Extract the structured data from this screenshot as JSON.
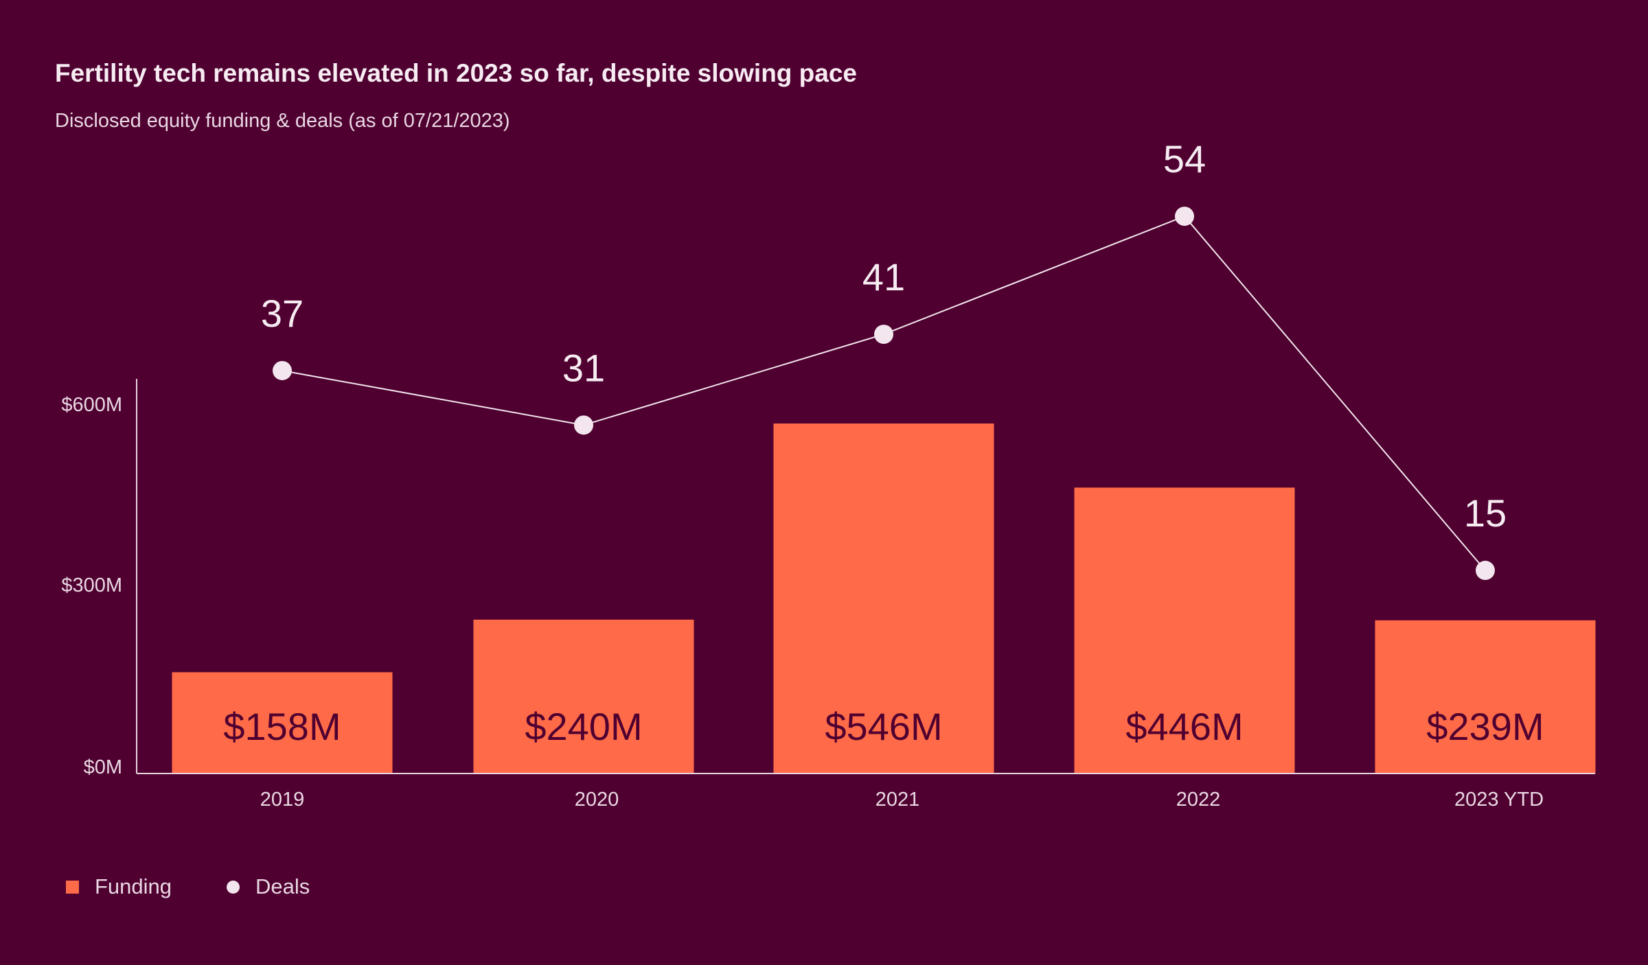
{
  "chart_data": {
    "type": "bar+line",
    "title": "Fertility tech remains elevated in 2023 so far, despite slowing pace",
    "subtitle": "Disclosed equity funding & deals (as of 07/21/2023)",
    "categories": [
      "2019",
      "2020",
      "2021",
      "2022",
      "2023 YTD"
    ],
    "series": [
      {
        "name": "Funding",
        "type": "bar",
        "values": [
          158,
          240,
          546,
          446,
          239
        ],
        "labels": [
          "$158M",
          "$240M",
          "$546M",
          "$446M",
          "$239M"
        ],
        "color": "#ff6b48"
      },
      {
        "name": "Deals",
        "type": "line",
        "values": [
          37,
          31,
          41,
          54,
          15
        ],
        "labels": [
          "37",
          "31",
          "41",
          "54",
          "15"
        ],
        "color": "#f3e6ee"
      }
    ],
    "yticks": [
      "$0M",
      "$300M",
      "$600M"
    ],
    "ytick_values": [
      0,
      300,
      600
    ],
    "ylim": [
      0,
      620
    ],
    "grid": false,
    "legend_position": "bottom-left",
    "background": "#4f0030"
  },
  "legend": {
    "funding": "Funding",
    "deals": "Deals"
  }
}
